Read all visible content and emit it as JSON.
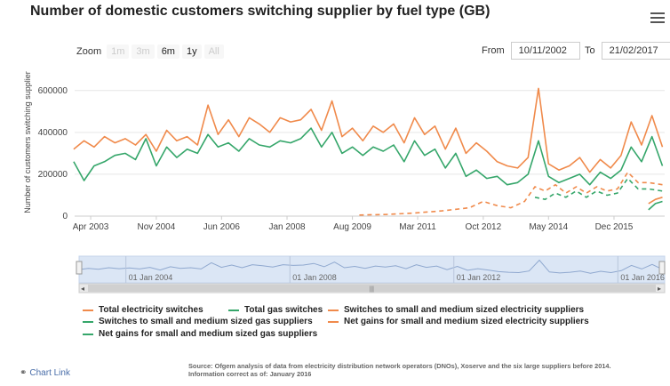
{
  "title": "Number of domestic customers switching supplier by fuel type (GB)",
  "zoom": {
    "label": "Zoom",
    "buttons": [
      {
        "label": "1m",
        "enabled": false
      },
      {
        "label": "3m",
        "enabled": false
      },
      {
        "label": "6m",
        "enabled": true
      },
      {
        "label": "1y",
        "enabled": true
      },
      {
        "label": "All",
        "enabled": false
      }
    ]
  },
  "range": {
    "from_label": "From",
    "from_value": "10/11/2002",
    "to_label": "To",
    "to_value": "21/02/2017"
  },
  "navigator": {
    "labels": [
      "01 Jan 2004",
      "01 Jan 2008",
      "01 Jan 2012",
      "01 Jan 2016"
    ]
  },
  "chart_link": {
    "label": "Chart Link"
  },
  "source": {
    "line1": "Source: Ofgem analysis of data from electricity distribution network operators (DNOs), Xoserve and the six large suppliers before 2014.",
    "line2": "Information correct as of: January 2016"
  },
  "chart_data": {
    "type": "line",
    "title": "Number of domestic customers switching supplier by fuel type (GB)",
    "ylabel": "Number of customers switching supplier",
    "xlabel": "",
    "xlim": [
      "2002-11-10",
      "2017-02-21"
    ],
    "ylim": [
      0,
      650000
    ],
    "yticks": [
      0,
      200000,
      400000,
      600000
    ],
    "xticks": [
      "Apr 2003",
      "Nov 2004",
      "Jun 2006",
      "Jan 2008",
      "Aug 2009",
      "Mar 2011",
      "Oct 2012",
      "May 2014",
      "Dec 2015"
    ],
    "grid": true,
    "legend_position": "bottom",
    "colors": {
      "electricity": "#f08a4b",
      "gas": "#35a66a"
    },
    "series": [
      {
        "name": "Total electricity switches",
        "color": "#f08a4b",
        "dash": "solid",
        "x": [
          "2002-11-01",
          "2003-02-01",
          "2003-05-01",
          "2003-08-01",
          "2003-11-01",
          "2004-02-01",
          "2004-05-01",
          "2004-08-01",
          "2004-11-01",
          "2005-02-01",
          "2005-05-01",
          "2005-08-01",
          "2005-11-01",
          "2006-02-01",
          "2006-05-01",
          "2006-08-01",
          "2006-11-01",
          "2007-02-01",
          "2007-05-01",
          "2007-08-01",
          "2007-11-01",
          "2008-02-01",
          "2008-05-01",
          "2008-08-01",
          "2008-11-01",
          "2009-02-01",
          "2009-05-01",
          "2009-08-01",
          "2009-11-01",
          "2010-02-01",
          "2010-05-01",
          "2010-08-01",
          "2010-11-01",
          "2011-02-01",
          "2011-05-01",
          "2011-08-01",
          "2011-11-01",
          "2012-02-01",
          "2012-05-01",
          "2012-08-01",
          "2012-11-01",
          "2013-02-01",
          "2013-05-01",
          "2013-08-01",
          "2013-11-01",
          "2014-02-01",
          "2014-05-01",
          "2014-08-01",
          "2014-11-01",
          "2015-02-01",
          "2015-05-01",
          "2015-08-01",
          "2015-11-01",
          "2016-02-01",
          "2016-05-01",
          "2016-08-01",
          "2016-11-01",
          "2017-02-01"
        ],
        "values": [
          320000,
          360000,
          330000,
          380000,
          350000,
          370000,
          340000,
          390000,
          310000,
          410000,
          360000,
          380000,
          340000,
          530000,
          390000,
          460000,
          380000,
          470000,
          440000,
          400000,
          470000,
          450000,
          460000,
          510000,
          410000,
          550000,
          380000,
          420000,
          360000,
          430000,
          400000,
          440000,
          350000,
          470000,
          390000,
          430000,
          320000,
          420000,
          300000,
          350000,
          310000,
          260000,
          240000,
          230000,
          280000,
          610000,
          250000,
          220000,
          240000,
          280000,
          210000,
          270000,
          230000,
          290000,
          450000,
          340000,
          480000,
          330000
        ]
      },
      {
        "name": "Total gas switches",
        "color": "#35a66a",
        "dash": "solid",
        "x": [
          "2002-11-01",
          "2003-02-01",
          "2003-05-01",
          "2003-08-01",
          "2003-11-01",
          "2004-02-01",
          "2004-05-01",
          "2004-08-01",
          "2004-11-01",
          "2005-02-01",
          "2005-05-01",
          "2005-08-01",
          "2005-11-01",
          "2006-02-01",
          "2006-05-01",
          "2006-08-01",
          "2006-11-01",
          "2007-02-01",
          "2007-05-01",
          "2007-08-01",
          "2007-11-01",
          "2008-02-01",
          "2008-05-01",
          "2008-08-01",
          "2008-11-01",
          "2009-02-01",
          "2009-05-01",
          "2009-08-01",
          "2009-11-01",
          "2010-02-01",
          "2010-05-01",
          "2010-08-01",
          "2010-11-01",
          "2011-02-01",
          "2011-05-01",
          "2011-08-01",
          "2011-11-01",
          "2012-02-01",
          "2012-05-01",
          "2012-08-01",
          "2012-11-01",
          "2013-02-01",
          "2013-05-01",
          "2013-08-01",
          "2013-11-01",
          "2014-02-01",
          "2014-05-01",
          "2014-08-01",
          "2014-11-01",
          "2015-02-01",
          "2015-05-01",
          "2015-08-01",
          "2015-11-01",
          "2016-02-01",
          "2016-05-01",
          "2016-08-01",
          "2016-11-01",
          "2017-02-01"
        ],
        "values": [
          260000,
          170000,
          240000,
          260000,
          290000,
          300000,
          270000,
          370000,
          240000,
          330000,
          280000,
          320000,
          300000,
          390000,
          330000,
          350000,
          310000,
          370000,
          340000,
          330000,
          360000,
          350000,
          370000,
          420000,
          330000,
          400000,
          300000,
          330000,
          290000,
          330000,
          310000,
          340000,
          260000,
          360000,
          290000,
          320000,
          230000,
          300000,
          190000,
          220000,
          180000,
          190000,
          150000,
          160000,
          200000,
          360000,
          190000,
          160000,
          180000,
          200000,
          150000,
          210000,
          180000,
          220000,
          330000,
          260000,
          380000,
          240000
        ]
      },
      {
        "name": "Switches to small and medium sized electricity suppliers",
        "color": "#f08a4b",
        "dash": "dashed",
        "x": [
          "2009-10-01",
          "2010-06-01",
          "2011-02-01",
          "2011-10-01",
          "2012-06-01",
          "2012-10-01",
          "2013-02-01",
          "2013-06-01",
          "2013-10-01",
          "2014-01-01",
          "2014-04-01",
          "2014-07-01",
          "2014-10-01",
          "2015-01-01",
          "2015-04-01",
          "2015-07-01",
          "2015-10-01",
          "2016-01-01",
          "2016-04-01",
          "2016-07-01",
          "2016-10-01",
          "2017-02-01"
        ],
        "values": [
          5000,
          8000,
          15000,
          25000,
          40000,
          70000,
          50000,
          40000,
          70000,
          140000,
          120000,
          150000,
          110000,
          140000,
          110000,
          140000,
          120000,
          130000,
          210000,
          160000,
          160000,
          150000
        ]
      },
      {
        "name": "Switches to small and medium sized gas suppliers",
        "color": "#35a66a",
        "dash": "dashed",
        "x": [
          "2014-01-01",
          "2014-04-01",
          "2014-07-01",
          "2014-10-01",
          "2015-01-01",
          "2015-04-01",
          "2015-07-01",
          "2015-10-01",
          "2016-01-01",
          "2016-04-01",
          "2016-07-01",
          "2016-10-01",
          "2017-02-01"
        ],
        "values": [
          90000,
          80000,
          110000,
          90000,
          120000,
          90000,
          120000,
          100000,
          110000,
          180000,
          130000,
          130000,
          120000
        ]
      },
      {
        "name": "Net gains for small and medium sized electricity suppliers",
        "color": "#f08a4b",
        "dash": "solid",
        "x": [
          "2016-10-01",
          "2016-12-01",
          "2017-02-01"
        ],
        "values": [
          60000,
          80000,
          90000
        ]
      },
      {
        "name": "Net gains for small and medium sized gas suppliers",
        "color": "#35a66a",
        "dash": "solid",
        "x": [
          "2016-10-01",
          "2016-12-01",
          "2017-02-01"
        ],
        "values": [
          30000,
          60000,
          70000
        ]
      }
    ]
  }
}
